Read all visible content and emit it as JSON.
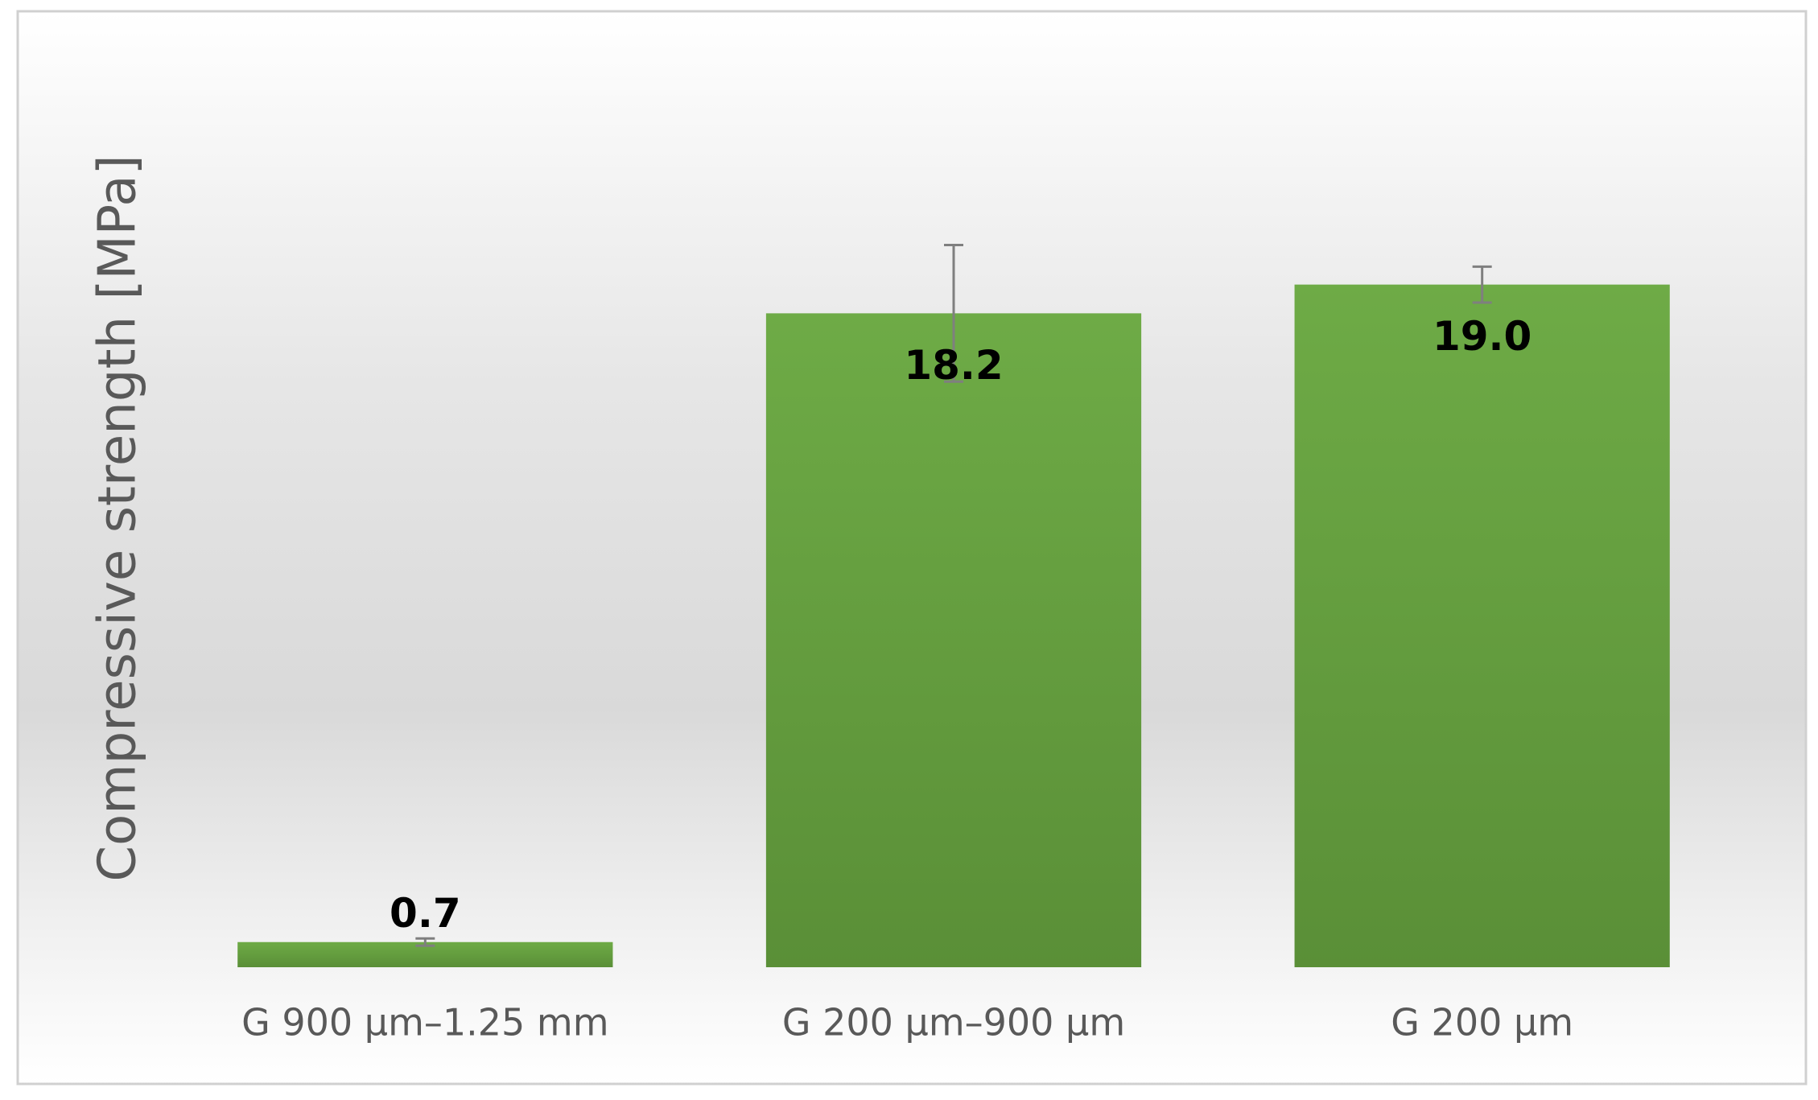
{
  "chart_data": {
    "type": "bar",
    "y_label": "Compressive strength [MPa]",
    "categories": [
      "G 900 µm–1.25 mm",
      "G 200 µm–900 µm",
      "G 200 µm"
    ],
    "values": [
      0.7,
      18.2,
      19.0
    ],
    "value_labels": [
      "0.7",
      "18.2",
      "19.0"
    ],
    "errors": [
      0.1,
      1.9,
      0.5
    ],
    "color": "#64a03c",
    "ylim": [
      0,
      20
    ]
  }
}
